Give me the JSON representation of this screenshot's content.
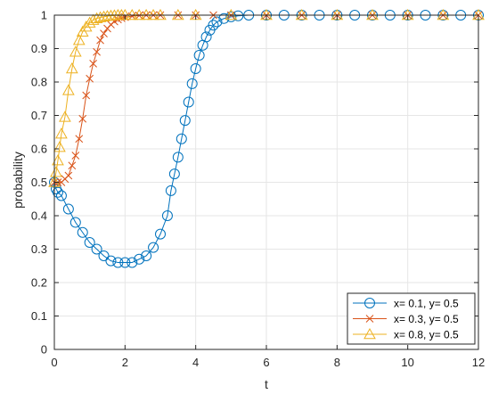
{
  "chart_data": {
    "type": "line",
    "xlabel": "t",
    "ylabel": "probability",
    "xlim": [
      0,
      12
    ],
    "ylim": [
      0,
      1
    ],
    "xticks": [
      0,
      2,
      4,
      6,
      8,
      10,
      12
    ],
    "yticks": [
      0,
      0.1,
      0.2,
      0.3,
      0.4,
      0.5,
      0.6,
      0.7,
      0.8,
      0.9,
      1
    ],
    "xtick_labels": [
      "0",
      "2",
      "4",
      "6",
      "8",
      "10",
      "12"
    ],
    "ytick_labels": [
      "0",
      "0.1",
      "0.2",
      "0.3",
      "0.4",
      "0.5",
      "0.6",
      "0.7",
      "0.8",
      "0.9",
      "1"
    ],
    "grid": true,
    "legend_position": "bottom-right",
    "series": [
      {
        "name": "x= 0.1, y= 0.5",
        "color": "#0072BD",
        "marker": "circle",
        "x": [
          0,
          0.05,
          0.1,
          0.2,
          0.4,
          0.6,
          0.8,
          1.0,
          1.2,
          1.4,
          1.6,
          1.8,
          2.0,
          2.2,
          2.4,
          2.6,
          2.8,
          3.0,
          3.2,
          3.3,
          3.4,
          3.5,
          3.6,
          3.7,
          3.8,
          3.9,
          4.0,
          4.1,
          4.2,
          4.3,
          4.4,
          4.5,
          4.6,
          4.8,
          5.0,
          5.2,
          5.5,
          6.0,
          6.5,
          7.0,
          7.5,
          8.0,
          8.5,
          9.0,
          9.5,
          10.0,
          10.5,
          11.0,
          11.5,
          12.0
        ],
        "y": [
          0.5,
          0.48,
          0.47,
          0.46,
          0.42,
          0.38,
          0.35,
          0.32,
          0.3,
          0.28,
          0.265,
          0.26,
          0.26,
          0.26,
          0.27,
          0.28,
          0.305,
          0.345,
          0.4,
          0.475,
          0.525,
          0.575,
          0.63,
          0.685,
          0.74,
          0.795,
          0.84,
          0.88,
          0.91,
          0.935,
          0.955,
          0.97,
          0.98,
          0.99,
          0.995,
          0.998,
          1,
          1,
          1,
          1,
          1,
          1,
          1,
          1,
          1,
          1,
          1,
          1,
          1,
          1
        ]
      },
      {
        "name": "x= 0.3, y= 0.5",
        "color": "#D95319",
        "marker": "x",
        "x": [
          0,
          0.1,
          0.2,
          0.3,
          0.4,
          0.5,
          0.6,
          0.7,
          0.8,
          0.9,
          1.0,
          1.1,
          1.2,
          1.3,
          1.4,
          1.5,
          1.6,
          1.7,
          1.8,
          1.9,
          2.0,
          2.2,
          2.4,
          2.6,
          2.8,
          3.0,
          3.5,
          4.0,
          4.5,
          5.0,
          6.0,
          7.0,
          8.0,
          9.0,
          10.0,
          11.0,
          12.0
        ],
        "y": [
          0.5,
          0.5,
          0.5,
          0.51,
          0.52,
          0.55,
          0.58,
          0.63,
          0.69,
          0.76,
          0.81,
          0.855,
          0.89,
          0.925,
          0.945,
          0.96,
          0.972,
          0.981,
          0.987,
          0.991,
          0.994,
          0.997,
          0.999,
          1,
          1,
          1,
          1,
          1,
          1,
          1,
          1,
          1,
          1,
          1,
          1,
          1,
          1
        ]
      },
      {
        "name": "x= 0.8, y= 0.5",
        "color": "#EDB120",
        "marker": "triangle",
        "x": [
          0,
          0.05,
          0.1,
          0.15,
          0.2,
          0.3,
          0.4,
          0.5,
          0.6,
          0.7,
          0.8,
          0.9,
          1.0,
          1.1,
          1.2,
          1.3,
          1.4,
          1.5,
          1.6,
          1.7,
          1.8,
          1.9,
          2.0,
          2.2,
          2.4,
          2.6,
          2.8,
          3.0,
          3.5,
          4.0,
          5.0,
          6.0,
          7.0,
          8.0,
          9.0,
          10.0,
          11.0,
          12.0
        ],
        "y": [
          0.5,
          0.53,
          0.565,
          0.605,
          0.645,
          0.695,
          0.775,
          0.84,
          0.89,
          0.925,
          0.95,
          0.965,
          0.977,
          0.985,
          0.99,
          0.993,
          0.995,
          0.997,
          0.998,
          0.999,
          1,
          1,
          1,
          1,
          1,
          1,
          1,
          1,
          1,
          1,
          1,
          1,
          1,
          1,
          1,
          1,
          1,
          1
        ]
      }
    ]
  }
}
